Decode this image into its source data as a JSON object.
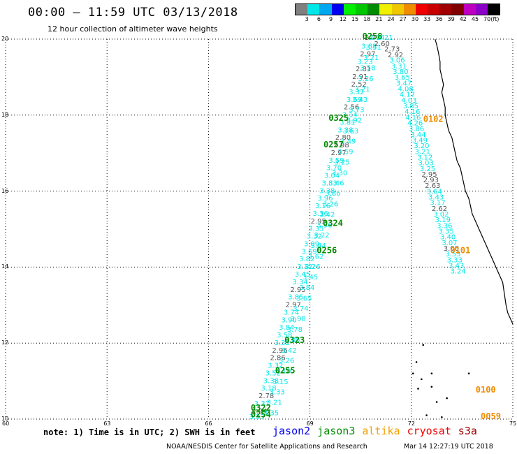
{
  "header": {
    "title": "00:00 – 11:59 UTC 03/13/2018",
    "subtitle": "12 hour collection of altimeter wave heights"
  },
  "colorbar": {
    "colors": [
      "#808080",
      "#00e8e8",
      "#00a8f0",
      "#0000f0",
      "#00f000",
      "#00c800",
      "#008c00",
      "#f0f000",
      "#f0c800",
      "#f08c00",
      "#f00000",
      "#c80000",
      "#a00000",
      "#800000",
      "#c000c0",
      "#8c00c8",
      "#000000"
    ],
    "labels": [
      "3",
      "6",
      "9",
      "12",
      "15",
      "18",
      "21",
      "24",
      "27",
      "30",
      "33",
      "36",
      "39",
      "42",
      "45",
      "70",
      "(ft)"
    ]
  },
  "map": {
    "lon_range": [
      60,
      75
    ],
    "lat_range": [
      10,
      20
    ],
    "lon_ticks": [
      "60",
      "63",
      "66",
      "69",
      "72",
      "75"
    ],
    "lat_ticks": [
      "10",
      "12",
      "14",
      "16",
      "18",
      "20"
    ],
    "track_color": "#00e8e8",
    "gray_color": "#555555",
    "coast_color": "#000000",
    "pass_labels": [
      {
        "text": "0258",
        "lon": 70.55,
        "lat": 20.0,
        "color": "#008c00"
      },
      {
        "text": "0325",
        "lon": 69.55,
        "lat": 17.85,
        "color": "#008c00"
      },
      {
        "text": "0102",
        "lon": 72.35,
        "lat": 17.82,
        "color": "#f08c00"
      },
      {
        "text": "0257",
        "lon": 69.4,
        "lat": 17.15,
        "color": "#008c00"
      },
      {
        "text": "0324",
        "lon": 69.38,
        "lat": 15.08,
        "color": "#008c00"
      },
      {
        "text": "0256",
        "lon": 69.2,
        "lat": 14.37,
        "color": "#008c00"
      },
      {
        "text": "0101",
        "lon": 73.15,
        "lat": 14.37,
        "color": "#f08c00"
      },
      {
        "text": "0323",
        "lon": 68.25,
        "lat": 12.0,
        "color": "#008c00"
      },
      {
        "text": "0255",
        "lon": 67.97,
        "lat": 11.2,
        "color": "#008c00"
      },
      {
        "text": "0100",
        "lon": 73.9,
        "lat": 10.7,
        "color": "#f08c00"
      },
      {
        "text": "0322",
        "lon": 67.25,
        "lat": 10.22,
        "color": "#008c00"
      },
      {
        "text": "0254",
        "lon": 67.25,
        "lat": 10.05,
        "color": "#008c00"
      },
      {
        "text": "0059",
        "lon": 74.05,
        "lat": 10.0,
        "color": "#f08c00"
      }
    ],
    "east_track": [
      {
        "lon": 71.0,
        "lat": 19.98,
        "v": "3.21",
        "c": "#00e8e8"
      },
      {
        "lon": 70.9,
        "lat": 19.82,
        "v": "2.60",
        "c": "#555555"
      },
      {
        "lon": 71.2,
        "lat": 19.68,
        "v": "2.73",
        "c": "#555555"
      },
      {
        "lon": 71.3,
        "lat": 19.52,
        "v": "2.92",
        "c": "#555555"
      },
      {
        "lon": 71.35,
        "lat": 19.38,
        "v": "3.06",
        "c": "#00e8e8"
      },
      {
        "lon": 71.4,
        "lat": 19.23,
        "v": "3.31",
        "c": "#00e8e8"
      },
      {
        "lon": 71.45,
        "lat": 19.08,
        "v": "3.80",
        "c": "#00e8e8"
      },
      {
        "lon": 71.5,
        "lat": 18.93,
        "v": "3.65",
        "c": "#00e8e8"
      },
      {
        "lon": 71.55,
        "lat": 18.78,
        "v": "3.47",
        "c": "#00e8e8"
      },
      {
        "lon": 71.6,
        "lat": 18.63,
        "v": "4.08",
        "c": "#00e8e8"
      },
      {
        "lon": 71.65,
        "lat": 18.48,
        "v": "4.17",
        "c": "#00e8e8"
      },
      {
        "lon": 71.7,
        "lat": 18.33,
        "v": "4.03",
        "c": "#00e8e8"
      },
      {
        "lon": 71.75,
        "lat": 18.18,
        "v": "3.85",
        "c": "#00e8e8"
      },
      {
        "lon": 71.8,
        "lat": 18.03,
        "v": "4.16",
        "c": "#00e8e8"
      },
      {
        "lon": 71.82,
        "lat": 17.88,
        "v": "4.16",
        "c": "#00e8e8"
      },
      {
        "lon": 71.88,
        "lat": 17.73,
        "v": "4.26",
        "c": "#00e8e8"
      },
      {
        "lon": 71.92,
        "lat": 17.58,
        "v": "3.86",
        "c": "#00e8e8"
      },
      {
        "lon": 71.97,
        "lat": 17.43,
        "v": "3.44",
        "c": "#00e8e8"
      },
      {
        "lon": 72.02,
        "lat": 17.28,
        "v": "3.49",
        "c": "#00e8e8"
      },
      {
        "lon": 72.07,
        "lat": 17.13,
        "v": "3.20",
        "c": "#00e8e8"
      },
      {
        "lon": 72.1,
        "lat": 16.98,
        "v": "3.21",
        "c": "#00e8e8"
      },
      {
        "lon": 72.17,
        "lat": 16.83,
        "v": "3.12",
        "c": "#00e8e8"
      },
      {
        "lon": 72.2,
        "lat": 16.68,
        "v": "3.03",
        "c": "#00e8e8"
      },
      {
        "lon": 72.25,
        "lat": 16.53,
        "v": "3.25",
        "c": "#00e8e8"
      },
      {
        "lon": 72.3,
        "lat": 16.38,
        "v": "2.95",
        "c": "#555555"
      },
      {
        "lon": 72.35,
        "lat": 16.23,
        "v": "2.93",
        "c": "#555555"
      },
      {
        "lon": 72.4,
        "lat": 16.08,
        "v": "2.63",
        "c": "#555555"
      },
      {
        "lon": 72.45,
        "lat": 15.93,
        "v": "3.64",
        "c": "#00e8e8"
      },
      {
        "lon": 72.5,
        "lat": 15.78,
        "v": "3.43",
        "c": "#00e8e8"
      },
      {
        "lon": 72.55,
        "lat": 15.63,
        "v": "3.17",
        "c": "#00e8e8"
      },
      {
        "lon": 72.6,
        "lat": 15.48,
        "v": "2.62",
        "c": "#555555"
      },
      {
        "lon": 72.65,
        "lat": 15.33,
        "v": "3.02",
        "c": "#00e8e8"
      },
      {
        "lon": 72.7,
        "lat": 15.18,
        "v": "3.19",
        "c": "#00e8e8"
      },
      {
        "lon": 72.75,
        "lat": 15.03,
        "v": "3.36",
        "c": "#00e8e8"
      },
      {
        "lon": 72.8,
        "lat": 14.88,
        "v": "3.35",
        "c": "#00e8e8"
      },
      {
        "lon": 72.85,
        "lat": 14.73,
        "v": "3.40",
        "c": "#00e8e8"
      },
      {
        "lon": 72.9,
        "lat": 14.58,
        "v": "3.07",
        "c": "#00e8e8"
      },
      {
        "lon": 72.95,
        "lat": 14.43,
        "v": "3.00",
        "c": "#555555"
      },
      {
        "lon": 73.0,
        "lat": 14.28,
        "v": "3.55",
        "c": "#00e8e8"
      },
      {
        "lon": 73.05,
        "lat": 14.13,
        "v": "3.33",
        "c": "#00e8e8"
      },
      {
        "lon": 73.1,
        "lat": 13.98,
        "v": "3.43",
        "c": "#00e8e8"
      },
      {
        "lon": 73.15,
        "lat": 13.83,
        "v": "3.24",
        "c": "#00e8e8"
      }
    ],
    "west_track": [
      {
        "lon": 70.62,
        "lat": 19.98,
        "v": "2.77",
        "c": "#555555"
      },
      {
        "lon": 70.52,
        "lat": 19.75,
        "v": "3.88",
        "c": "#00e8e8"
      },
      {
        "lon": 70.48,
        "lat": 19.55,
        "v": "2.97",
        "c": "#555555"
      },
      {
        "lon": 70.4,
        "lat": 19.35,
        "v": "3.23",
        "c": "#00e8e8"
      },
      {
        "lon": 70.35,
        "lat": 19.15,
        "v": "2.81",
        "c": "#555555"
      },
      {
        "lon": 70.25,
        "lat": 18.95,
        "v": "2.91",
        "c": "#555555"
      },
      {
        "lon": 70.22,
        "lat": 18.75,
        "v": "2.52",
        "c": "#555555"
      },
      {
        "lon": 70.15,
        "lat": 18.55,
        "v": "3.32",
        "c": "#00e8e8"
      },
      {
        "lon": 70.08,
        "lat": 18.35,
        "v": "3.69",
        "c": "#00e8e8"
      },
      {
        "lon": 70.0,
        "lat": 18.15,
        "v": "2.56",
        "c": "#555555"
      },
      {
        "lon": 69.95,
        "lat": 17.95,
        "v": "3.14",
        "c": "#00e8e8"
      },
      {
        "lon": 69.88,
        "lat": 17.75,
        "v": "3.81",
        "c": "#00e8e8"
      },
      {
        "lon": 69.82,
        "lat": 17.55,
        "v": "3.38",
        "c": "#00e8e8"
      },
      {
        "lon": 69.75,
        "lat": 17.35,
        "v": "2.80",
        "c": "#555555"
      },
      {
        "lon": 69.7,
        "lat": 17.15,
        "v": "2.98",
        "c": "#555555"
      },
      {
        "lon": 69.62,
        "lat": 16.95,
        "v": "2.97",
        "c": "#555555"
      },
      {
        "lon": 69.55,
        "lat": 16.75,
        "v": "3.59",
        "c": "#00e8e8"
      },
      {
        "lon": 69.48,
        "lat": 16.55,
        "v": "3.70",
        "c": "#00e8e8"
      },
      {
        "lon": 69.42,
        "lat": 16.35,
        "v": "3.04",
        "c": "#00e8e8"
      },
      {
        "lon": 69.35,
        "lat": 16.15,
        "v": "3.83",
        "c": "#00e8e8"
      },
      {
        "lon": 69.28,
        "lat": 15.95,
        "v": "3.38",
        "c": "#00e8e8"
      },
      {
        "lon": 69.22,
        "lat": 15.75,
        "v": "3.96",
        "c": "#00e8e8"
      },
      {
        "lon": 69.15,
        "lat": 15.55,
        "v": "3.16",
        "c": "#00e8e8"
      },
      {
        "lon": 69.08,
        "lat": 15.35,
        "v": "3.36",
        "c": "#00e8e8"
      },
      {
        "lon": 69.02,
        "lat": 15.15,
        "v": "2.95",
        "c": "#555555"
      },
      {
        "lon": 68.95,
        "lat": 14.95,
        "v": "3.35",
        "c": "#00e8e8"
      },
      {
        "lon": 68.9,
        "lat": 14.75,
        "v": "3.32",
        "c": "#00e8e8"
      },
      {
        "lon": 68.82,
        "lat": 14.55,
        "v": "3.09",
        "c": "#00e8e8"
      },
      {
        "lon": 68.75,
        "lat": 14.35,
        "v": "3.69",
        "c": "#00e8e8"
      },
      {
        "lon": 68.68,
        "lat": 14.15,
        "v": "3.82",
        "c": "#00e8e8"
      },
      {
        "lon": 68.62,
        "lat": 13.95,
        "v": "3.12",
        "c": "#00e8e8"
      },
      {
        "lon": 68.55,
        "lat": 13.75,
        "v": "3.45",
        "c": "#00e8e8"
      },
      {
        "lon": 68.48,
        "lat": 13.55,
        "v": "3.34",
        "c": "#00e8e8"
      },
      {
        "lon": 68.42,
        "lat": 13.35,
        "v": "2.95",
        "c": "#555555"
      },
      {
        "lon": 68.35,
        "lat": 13.15,
        "v": "3.85",
        "c": "#00e8e8"
      },
      {
        "lon": 68.28,
        "lat": 12.95,
        "v": "2.97",
        "c": "#555555"
      },
      {
        "lon": 68.22,
        "lat": 12.75,
        "v": "3.74",
        "c": "#00e8e8"
      },
      {
        "lon": 68.15,
        "lat": 12.55,
        "v": "3.90",
        "c": "#00e8e8"
      },
      {
        "lon": 68.08,
        "lat": 12.35,
        "v": "3.84",
        "c": "#00e8e8"
      },
      {
        "lon": 68.02,
        "lat": 12.15,
        "v": "3.58",
        "c": "#00e8e8"
      },
      {
        "lon": 67.95,
        "lat": 11.95,
        "v": "3.32",
        "c": "#00e8e8"
      },
      {
        "lon": 67.88,
        "lat": 11.75,
        "v": "2.96",
        "c": "#555555"
      },
      {
        "lon": 67.82,
        "lat": 11.55,
        "v": "2.86",
        "c": "#555555"
      },
      {
        "lon": 67.75,
        "lat": 11.35,
        "v": "3.32",
        "c": "#00e8e8"
      },
      {
        "lon": 67.68,
        "lat": 11.15,
        "v": "3.52",
        "c": "#00e8e8"
      },
      {
        "lon": 67.62,
        "lat": 10.95,
        "v": "3.38",
        "c": "#00e8e8"
      },
      {
        "lon": 67.55,
        "lat": 10.75,
        "v": "3.18",
        "c": "#00e8e8"
      },
      {
        "lon": 67.48,
        "lat": 10.55,
        "v": "2.78",
        "c": "#555555"
      },
      {
        "lon": 67.35,
        "lat": 10.35,
        "v": "3.37",
        "c": "#00e8e8"
      },
      {
        "lon": 67.28,
        "lat": 10.15,
        "v": "2.94",
        "c": "#555555"
      },
      {
        "lon": 67.2,
        "lat": 10.0,
        "v": "3.33",
        "c": "#00e8e8"
      }
    ],
    "mid_track": [
      {
        "lon": 70.75,
        "lat": 19.98,
        "v": "3.14",
        "c": "#00e8e8"
      },
      {
        "lon": 70.65,
        "lat": 19.72,
        "v": "3.31",
        "c": "#00e8e8"
      },
      {
        "lon": 70.58,
        "lat": 19.45,
        "v": "3.21",
        "c": "#00e8e8"
      },
      {
        "lon": 70.48,
        "lat": 19.18,
        "v": "3.58",
        "c": "#00e8e8"
      },
      {
        "lon": 70.42,
        "lat": 18.9,
        "v": "3.26",
        "c": "#00e8e8"
      },
      {
        "lon": 70.32,
        "lat": 18.62,
        "v": "3.21",
        "c": "#00e8e8"
      },
      {
        "lon": 70.25,
        "lat": 18.35,
        "v": "3.43",
        "c": "#00e8e8"
      },
      {
        "lon": 70.15,
        "lat": 18.08,
        "v": "3.73",
        "c": "#00e8e8"
      },
      {
        "lon": 70.08,
        "lat": 17.8,
        "v": "3.92",
        "c": "#00e8e8"
      },
      {
        "lon": 69.98,
        "lat": 17.52,
        "v": "3.63",
        "c": "#00e8e8"
      },
      {
        "lon": 69.9,
        "lat": 17.25,
        "v": "3.49",
        "c": "#00e8e8"
      },
      {
        "lon": 69.82,
        "lat": 16.98,
        "v": "3.59",
        "c": "#00e8e8"
      },
      {
        "lon": 69.72,
        "lat": 16.7,
        "v": "3.25",
        "c": "#00e8e8"
      },
      {
        "lon": 69.65,
        "lat": 16.42,
        "v": "3.30",
        "c": "#00e8e8"
      },
      {
        "lon": 69.55,
        "lat": 16.15,
        "v": "3.46",
        "c": "#00e8e8"
      },
      {
        "lon": 69.45,
        "lat": 15.88,
        "v": "3.86",
        "c": "#00e8e8"
      },
      {
        "lon": 69.38,
        "lat": 15.6,
        "v": "3.26",
        "c": "#00e8e8"
      },
      {
        "lon": 69.28,
        "lat": 15.32,
        "v": "3.42",
        "c": "#00e8e8"
      },
      {
        "lon": 69.2,
        "lat": 15.05,
        "v": "3.36",
        "c": "#00e8e8"
      },
      {
        "lon": 69.12,
        "lat": 14.78,
        "v": "3.22",
        "c": "#00e8e8"
      },
      {
        "lon": 69.02,
        "lat": 14.5,
        "v": "3.44",
        "c": "#00e8e8"
      },
      {
        "lon": 68.95,
        "lat": 14.22,
        "v": "3.62",
        "c": "#00e8e8"
      },
      {
        "lon": 68.85,
        "lat": 13.95,
        "v": "3.26",
        "c": "#00e8e8"
      },
      {
        "lon": 68.78,
        "lat": 13.68,
        "v": "3.45",
        "c": "#00e8e8"
      },
      {
        "lon": 68.68,
        "lat": 13.4,
        "v": "3.84",
        "c": "#00e8e8"
      },
      {
        "lon": 68.6,
        "lat": 13.12,
        "v": "3.65",
        "c": "#00e8e8"
      },
      {
        "lon": 68.5,
        "lat": 12.85,
        "v": "3.74",
        "c": "#00e8e8"
      },
      {
        "lon": 68.42,
        "lat": 12.58,
        "v": "3.98",
        "c": "#00e8e8"
      },
      {
        "lon": 68.32,
        "lat": 12.3,
        "v": "3.78",
        "c": "#00e8e8"
      },
      {
        "lon": 68.25,
        "lat": 12.02,
        "v": "3.05",
        "c": "#00e8e8"
      },
      {
        "lon": 68.15,
        "lat": 11.75,
        "v": "3.42",
        "c": "#00e8e8"
      },
      {
        "lon": 68.08,
        "lat": 11.48,
        "v": "3.26",
        "c": "#00e8e8"
      },
      {
        "lon": 67.98,
        "lat": 11.2,
        "v": "3.10",
        "c": "#00e8e8"
      },
      {
        "lon": 67.9,
        "lat": 10.92,
        "v": "3.15",
        "c": "#00e8e8"
      },
      {
        "lon": 67.8,
        "lat": 10.65,
        "v": "3.33",
        "c": "#00e8e8"
      },
      {
        "lon": 67.72,
        "lat": 10.38,
        "v": "3.21",
        "c": "#00e8e8"
      },
      {
        "lon": 67.62,
        "lat": 10.1,
        "v": "3.35",
        "c": "#00e8e8"
      }
    ],
    "coastline": [
      [
        72.7,
        20.0
      ],
      [
        72.75,
        19.85
      ],
      [
        72.8,
        19.65
      ],
      [
        72.85,
        19.4
      ],
      [
        72.85,
        19.2
      ],
      [
        72.9,
        19.0
      ],
      [
        72.95,
        18.8
      ],
      [
        72.9,
        18.6
      ],
      [
        72.95,
        18.4
      ],
      [
        73.0,
        18.2
      ],
      [
        73.0,
        18.0
      ],
      [
        73.05,
        17.8
      ],
      [
        73.1,
        17.6
      ],
      [
        73.2,
        17.4
      ],
      [
        73.25,
        17.2
      ],
      [
        73.3,
        17.0
      ],
      [
        73.35,
        16.8
      ],
      [
        73.45,
        16.6
      ],
      [
        73.5,
        16.4
      ],
      [
        73.55,
        16.2
      ],
      [
        73.6,
        16.0
      ],
      [
        73.7,
        15.8
      ],
      [
        73.75,
        15.6
      ],
      [
        73.8,
        15.4
      ],
      [
        73.9,
        15.2
      ],
      [
        74.0,
        15.0
      ],
      [
        74.1,
        14.8
      ],
      [
        74.2,
        14.6
      ],
      [
        74.3,
        14.4
      ],
      [
        74.4,
        14.2
      ],
      [
        74.5,
        14.0
      ],
      [
        74.6,
        13.8
      ],
      [
        74.7,
        13.6
      ],
      [
        74.75,
        13.3
      ],
      [
        74.8,
        13.0
      ],
      [
        74.85,
        12.8
      ],
      [
        74.95,
        12.6
      ],
      [
        75.0,
        12.5
      ]
    ],
    "islands": [
      [
        72.35,
        11.95
      ],
      [
        72.15,
        11.5
      ],
      [
        72.05,
        11.2
      ],
      [
        72.3,
        11.05
      ],
      [
        72.6,
        11.2
      ],
      [
        72.6,
        10.85
      ],
      [
        73.05,
        10.55
      ],
      [
        72.75,
        10.45
      ],
      [
        72.2,
        10.8
      ],
      [
        73.7,
        11.2
      ],
      [
        72.45,
        10.1
      ],
      [
        72.9,
        10.05
      ]
    ]
  },
  "footer": {
    "note": "note: 1) Time is in UTC; 2) SWH is in feet",
    "legend": [
      {
        "text": "jason2",
        "color": "#0000f0"
      },
      {
        "text": "jason3",
        "color": "#008c00"
      },
      {
        "text": "altika",
        "color": "#f0a000"
      },
      {
        "text": "cryosat",
        "color": "#f00000"
      },
      {
        "text": "s3a",
        "color": "#a00000"
      }
    ],
    "credit": "NOAA/NESDIS Center for Satellite Applications and Research",
    "timestamp": "Mar 14 12:27:19 UTC 2018"
  }
}
